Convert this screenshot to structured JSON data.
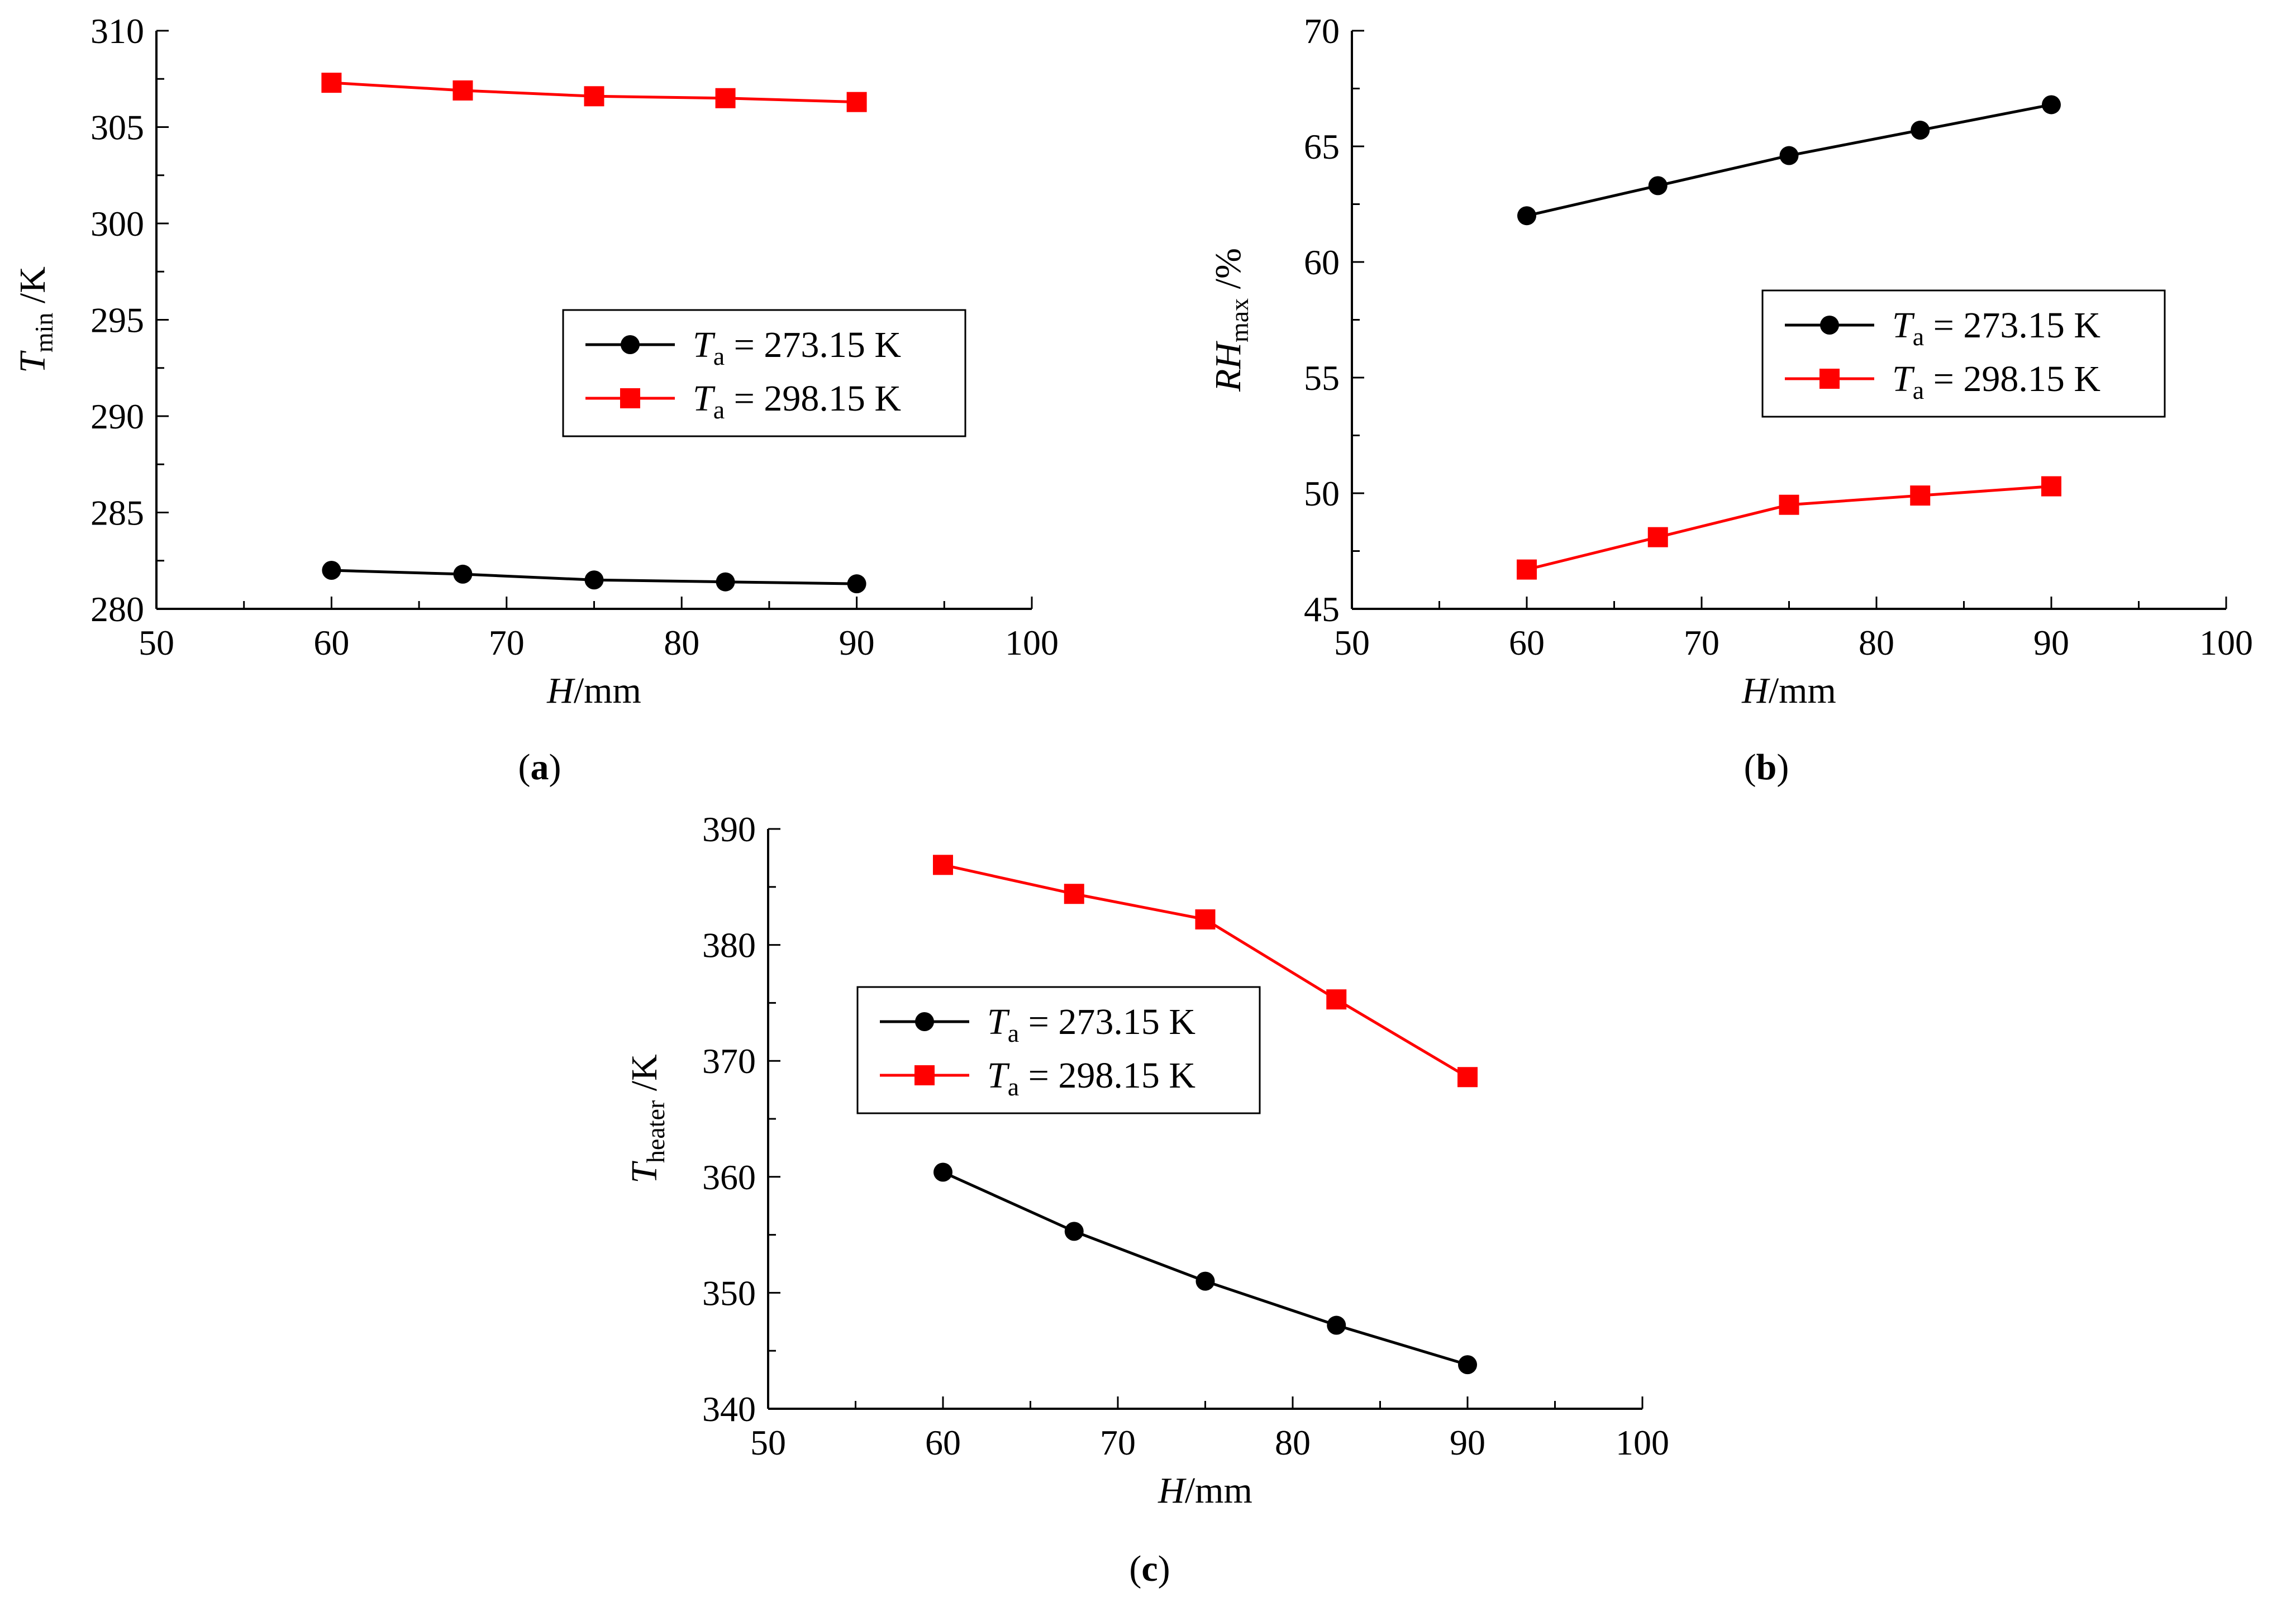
{
  "figure": {
    "colors": {
      "black_series": "#000000",
      "red_series": "#ff0000",
      "axis": "#000000",
      "background": "#ffffff"
    }
  },
  "chart_data": [
    {
      "id": "a",
      "type": "line",
      "panel_label": "a",
      "title": "",
      "xlabel": {
        "symbol": "H",
        "unit": "/mm"
      },
      "ylabel": {
        "symbol": "T",
        "sub": "min",
        "unit": " /K"
      },
      "xlim": [
        50,
        100
      ],
      "ylim": [
        280,
        310
      ],
      "xticks": [
        50,
        60,
        70,
        80,
        90,
        100
      ],
      "yticks": [
        280,
        285,
        290,
        295,
        300,
        305,
        310
      ],
      "minor_x_step": 5,
      "minor_y_step": 2.5,
      "grid": false,
      "legend_position": "center-right",
      "x": [
        60,
        67.5,
        75,
        82.5,
        90
      ],
      "series": [
        {
          "name": "Ta = 273.15 K",
          "label_symbol": "T",
          "label_sub": "a",
          "label_rest": " = 273.15 K",
          "marker": "circle",
          "color": "#000000",
          "values": [
            282.0,
            281.8,
            281.5,
            281.4,
            281.3
          ]
        },
        {
          "name": "Ta = 298.15 K",
          "label_symbol": "T",
          "label_sub": "a",
          "label_rest": " = 298.15 K",
          "marker": "square",
          "color": "#ff0000",
          "values": [
            307.3,
            306.9,
            306.6,
            306.5,
            306.3
          ]
        }
      ]
    },
    {
      "id": "b",
      "type": "line",
      "panel_label": "b",
      "title": "",
      "xlabel": {
        "symbol": "H",
        "unit": "/mm"
      },
      "ylabel": {
        "symbol": "RH",
        "sub": "max",
        "unit": " /%"
      },
      "xlim": [
        50,
        100
      ],
      "ylim": [
        45,
        70
      ],
      "xticks": [
        50,
        60,
        70,
        80,
        90,
        100
      ],
      "yticks": [
        45,
        50,
        55,
        60,
        65,
        70
      ],
      "minor_x_step": 5,
      "minor_y_step": 2.5,
      "grid": false,
      "legend_position": "center-right",
      "x": [
        60,
        67.5,
        75,
        82.5,
        90
      ],
      "series": [
        {
          "name": "Ta = 273.15 K",
          "label_symbol": "T",
          "label_sub": "a",
          "label_rest": " = 273.15 K",
          "marker": "circle",
          "color": "#000000",
          "values": [
            62.0,
            63.3,
            64.6,
            65.7,
            66.8
          ]
        },
        {
          "name": "Ta = 298.15 K",
          "label_symbol": "T",
          "label_sub": "a",
          "label_rest": " = 298.15 K",
          "marker": "square",
          "color": "#ff0000",
          "values": [
            46.7,
            48.1,
            49.5,
            49.9,
            50.3
          ]
        }
      ]
    },
    {
      "id": "c",
      "type": "line",
      "panel_label": "c",
      "title": "",
      "xlabel": {
        "symbol": "H",
        "unit": "/mm"
      },
      "ylabel": {
        "symbol": "T",
        "sub": "heater",
        "unit": " /K"
      },
      "xlim": [
        50,
        100
      ],
      "ylim": [
        340,
        390
      ],
      "xticks": [
        50,
        60,
        70,
        80,
        90,
        100
      ],
      "yticks": [
        340,
        350,
        360,
        370,
        380,
        390
      ],
      "minor_x_step": 5,
      "minor_y_step": 5,
      "grid": false,
      "legend_position": "top-left",
      "x": [
        60,
        67.5,
        75,
        82.5,
        90
      ],
      "series": [
        {
          "name": "Ta = 273.15 K",
          "label_symbol": "T",
          "label_sub": "a",
          "label_rest": " = 273.15 K",
          "marker": "circle",
          "color": "#000000",
          "values": [
            360.4,
            355.3,
            351.0,
            347.2,
            343.8
          ]
        },
        {
          "name": "Ta = 298.15 K",
          "label_symbol": "T",
          "label_sub": "a",
          "label_rest": " = 298.15 K",
          "marker": "square",
          "color": "#ff0000",
          "values": [
            386.9,
            384.4,
            382.2,
            375.3,
            368.6
          ]
        }
      ]
    }
  ]
}
